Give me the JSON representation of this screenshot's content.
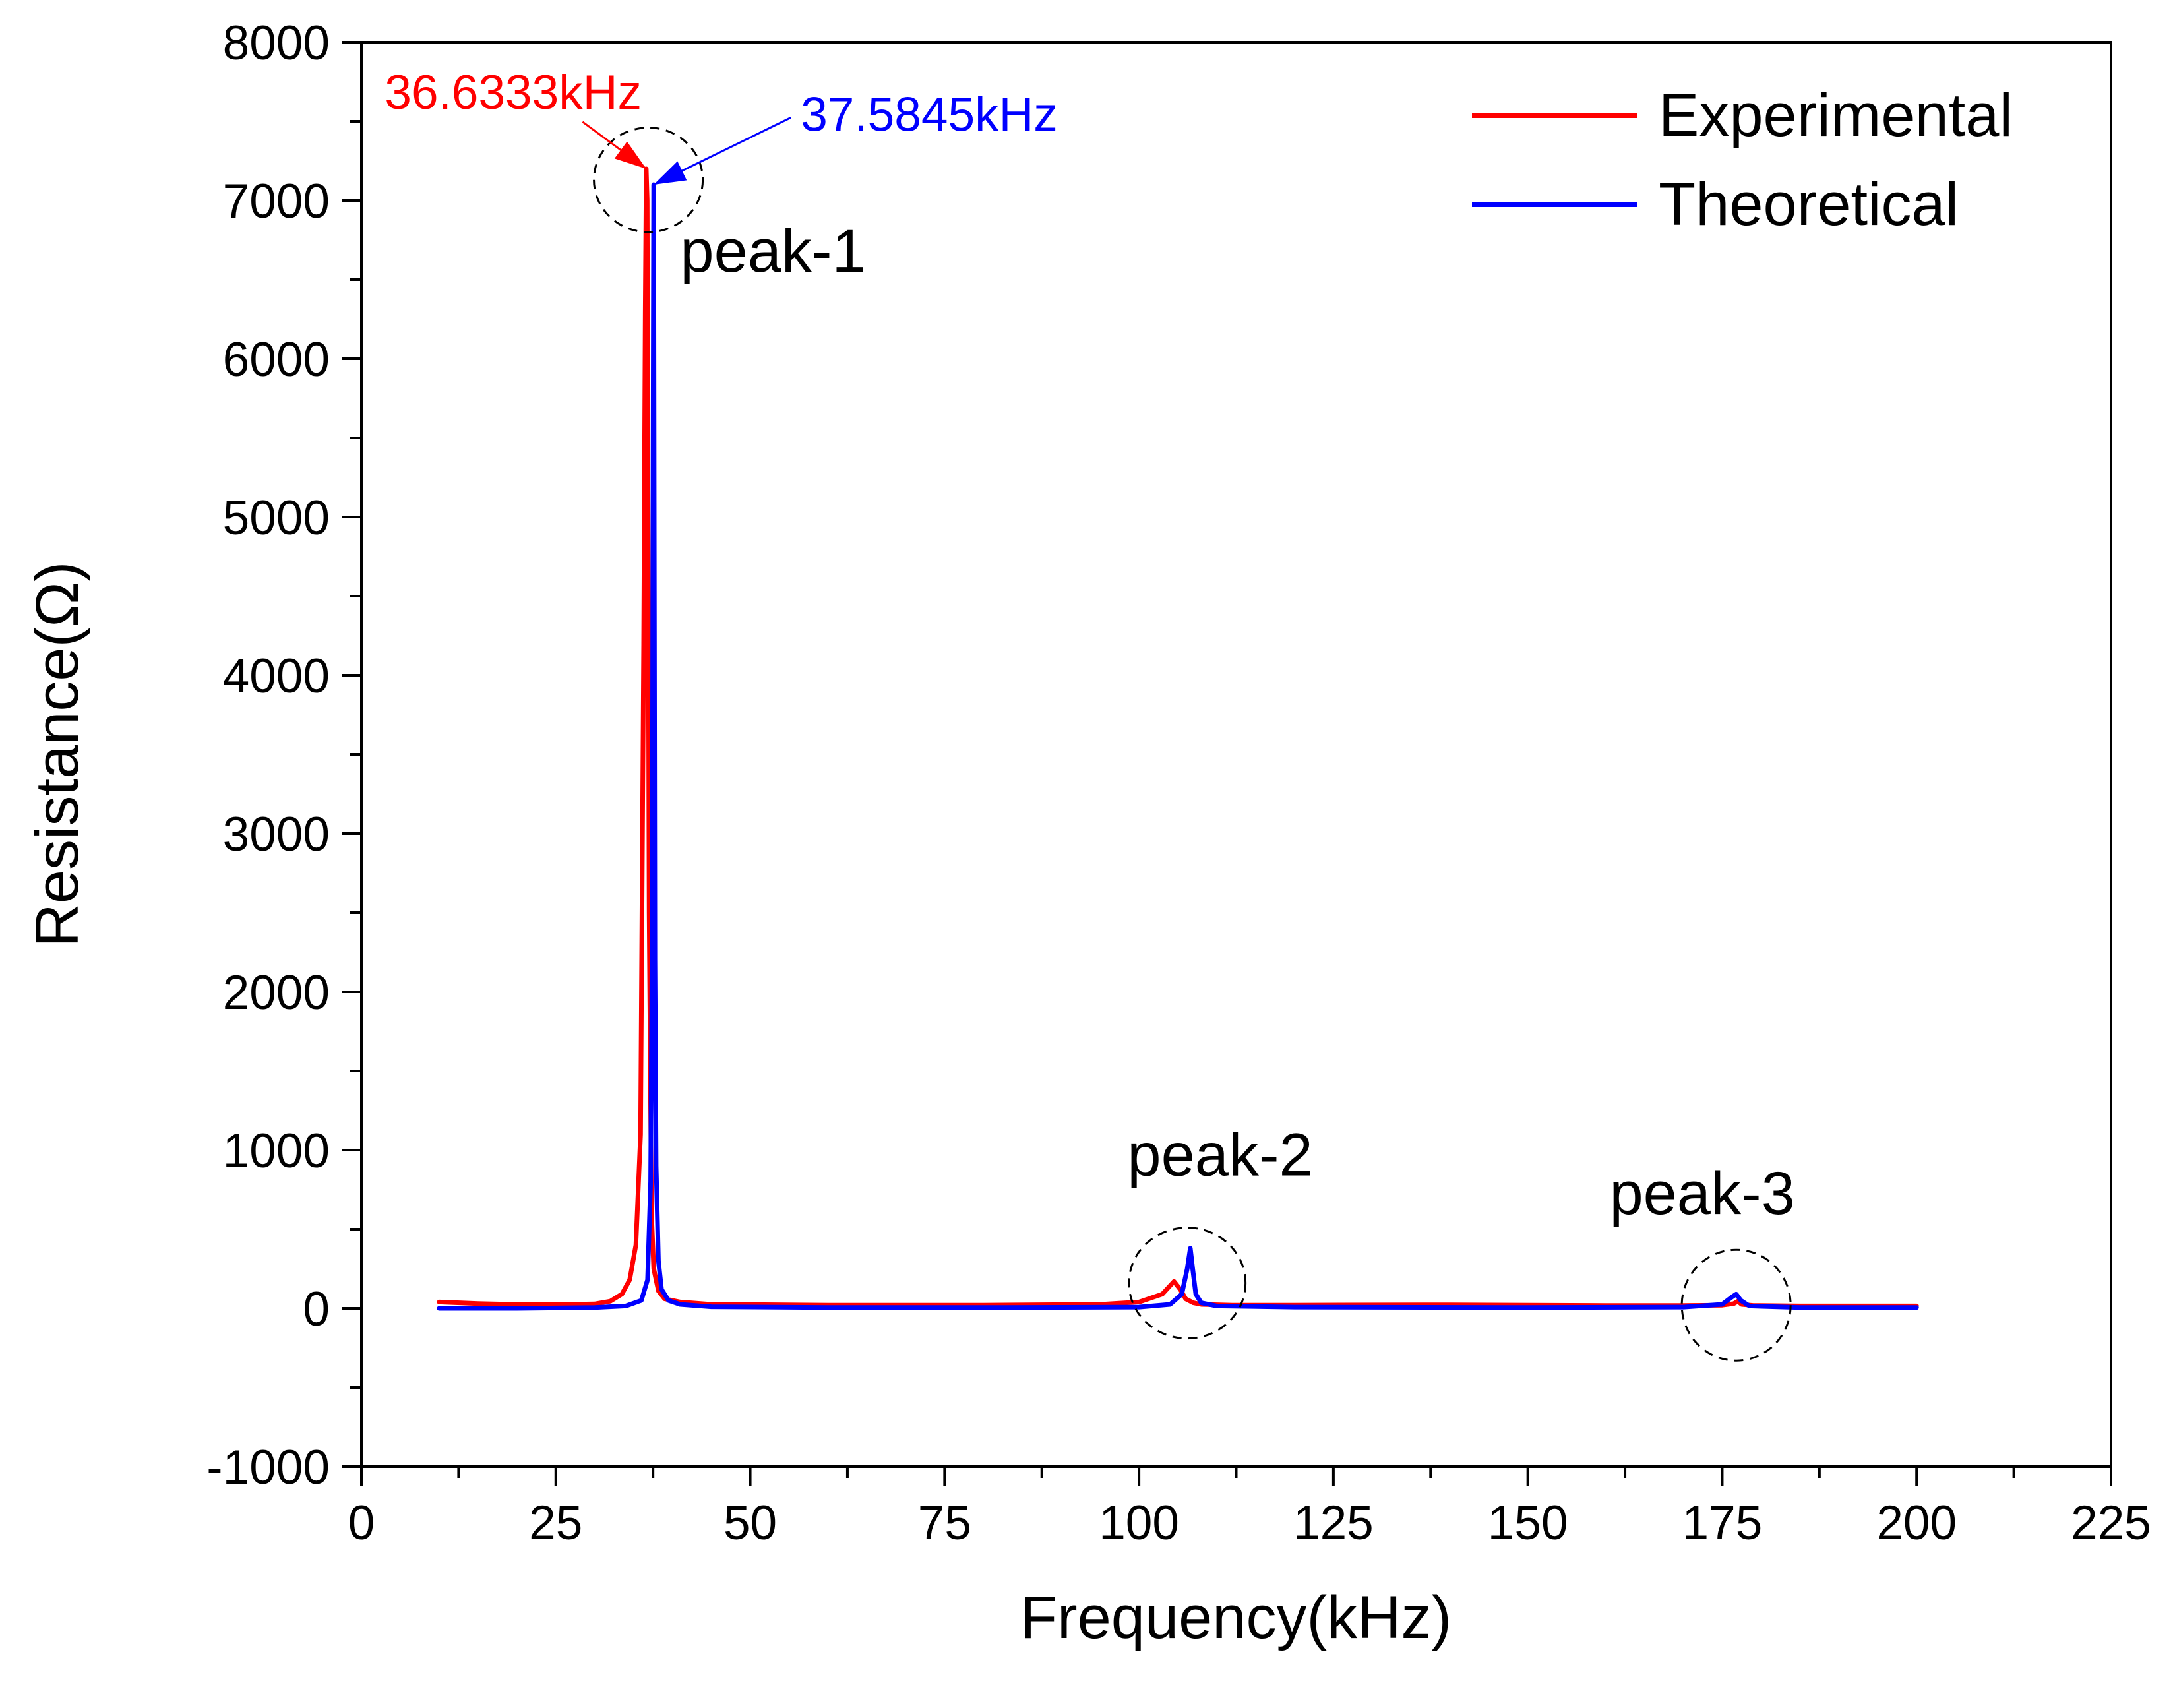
{
  "chart_data": {
    "type": "line",
    "title": "",
    "xlabel": "Frequency(kHz)",
    "ylabel": "Resistance(Ω)",
    "xlim": [
      0,
      225
    ],
    "ylim": [
      -1000,
      8000
    ],
    "xticks": [
      0,
      25,
      50,
      75,
      100,
      125,
      150,
      175,
      200,
      225
    ],
    "yticks": [
      -1000,
      0,
      1000,
      2000,
      3000,
      4000,
      5000,
      6000,
      7000,
      8000
    ],
    "x_minor_step": 12.5,
    "y_minor_step": 500,
    "grid": false,
    "legend_position": "top-right",
    "series": [
      {
        "name": "Experimental",
        "color": "#ff0000",
        "x": [
          10,
          15,
          20,
          25,
          30,
          32,
          33.5,
          34.5,
          35.3,
          35.9,
          36.3,
          36.5,
          36.6333,
          36.75,
          37.0,
          37.3,
          37.6,
          38.2,
          39,
          41,
          45,
          60,
          80,
          95,
          100,
          103,
          104.5,
          105.3,
          106,
          107,
          108,
          112,
          120,
          140,
          160,
          170,
          175,
          176.5,
          177,
          177.5,
          179,
          185,
          200
        ],
        "y": [
          40,
          30,
          25,
          25,
          28,
          45,
          90,
          180,
          400,
          1100,
          4200,
          6300,
          7200,
          7000,
          2500,
          600,
          250,
          110,
          60,
          40,
          25,
          20,
          20,
          25,
          40,
          90,
          170,
          120,
          60,
          35,
          25,
          20,
          20,
          22,
          18,
          18,
          20,
          30,
          45,
          25,
          18,
          15,
          15
        ]
      },
      {
        "name": "Theoretical",
        "color": "#0000ff",
        "x": [
          10,
          20,
          30,
          34,
          36,
          36.8,
          37.2,
          37.4,
          37.5,
          37.5845,
          37.65,
          37.75,
          37.9,
          38.2,
          38.6,
          39.5,
          41,
          45,
          60,
          80,
          100,
          104,
          105.5,
          106.2,
          106.6,
          106.9,
          107.3,
          108,
          110,
          120,
          150,
          170,
          175,
          176.2,
          176.8,
          177.4,
          178.5,
          185,
          200
        ],
        "y": [
          0,
          0,
          5,
          15,
          50,
          180,
          800,
          2500,
          5300,
          7100,
          5200,
          2200,
          900,
          300,
          120,
          50,
          25,
          10,
          5,
          5,
          8,
          25,
          90,
          250,
          380,
          250,
          90,
          35,
          15,
          8,
          5,
          8,
          25,
          70,
          90,
          50,
          15,
          5,
          5
        ]
      }
    ],
    "annotations": {
      "peak_labels": [
        {
          "text": "peak-1",
          "x": 41,
          "y": 6550
        },
        {
          "text": "peak-2",
          "x": 98.5,
          "y": 840
        },
        {
          "text": "peak-3",
          "x": 160.5,
          "y": 595
        }
      ],
      "frequency_labels": [
        {
          "text": "36.6333kHz",
          "color": "#ff0000",
          "label_x": 3,
          "label_y": 7580,
          "target_x": 36.6333,
          "target_y": 7200
        },
        {
          "text": "37.5845kHz",
          "color": "#0000ff",
          "label_x": 56.5,
          "label_y": 7440,
          "target_x": 37.5845,
          "target_y": 7100
        }
      ],
      "highlight_circles": [
        {
          "cx": 36.9,
          "cy": 7130,
          "rx": 7,
          "ry": 330
        },
        {
          "cx": 106.2,
          "cy": 160,
          "rx": 7.5,
          "ry": 350
        },
        {
          "cx": 176.8,
          "cy": 20,
          "rx": 7,
          "ry": 350
        }
      ]
    }
  }
}
